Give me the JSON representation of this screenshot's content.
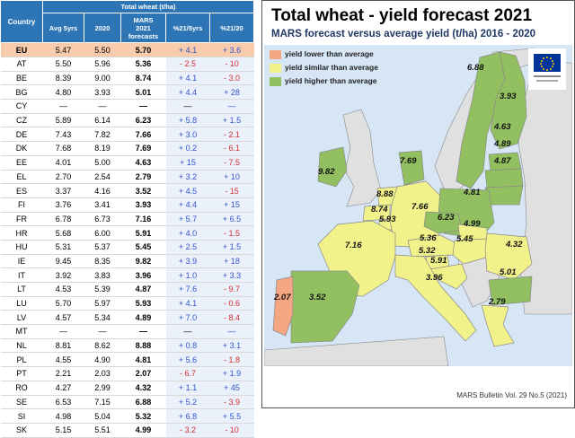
{
  "table": {
    "header_group": "Total wheat (t/ha)",
    "col_country": "Country",
    "col_avg": "Avg 5yrs",
    "col_2020": "2020",
    "col_forecast": [
      "MARS",
      "2021",
      "forecasts"
    ],
    "col_pct5": "%21/5yrs",
    "col_pct20": "%21/20",
    "rows": [
      {
        "c": "EU",
        "a": "5.47",
        "b": "5.50",
        "f": "5.70",
        "p1": "+ 4.1",
        "p2": "+ 3.6"
      },
      {
        "c": "AT",
        "a": "5.50",
        "b": "5.96",
        "f": "5.36",
        "p1": "- 2.5",
        "p2": "- 10"
      },
      {
        "c": "BE",
        "a": "8.39",
        "b": "9.00",
        "f": "8.74",
        "p1": "+ 4.1",
        "p2": "- 3.0"
      },
      {
        "c": "BG",
        "a": "4.80",
        "b": "3.93",
        "f": "5.01",
        "p1": "+ 4.4",
        "p2": "+ 28"
      },
      {
        "c": "CY",
        "a": "—",
        "b": "—",
        "f": "—",
        "p1": "—",
        "p2": "—"
      },
      {
        "c": "CZ",
        "a": "5.89",
        "b": "6.14",
        "f": "6.23",
        "p1": "+ 5.8",
        "p2": "+ 1.5"
      },
      {
        "c": "DE",
        "a": "7.43",
        "b": "7.82",
        "f": "7.66",
        "p1": "+ 3.0",
        "p2": "- 2.1"
      },
      {
        "c": "DK",
        "a": "7.68",
        "b": "8.19",
        "f": "7.69",
        "p1": "+ 0.2",
        "p2": "- 6.1"
      },
      {
        "c": "EE",
        "a": "4.01",
        "b": "5.00",
        "f": "4.63",
        "p1": "+ 15",
        "p2": "- 7.5"
      },
      {
        "c": "EL",
        "a": "2.70",
        "b": "2.54",
        "f": "2.79",
        "p1": "+ 3.2",
        "p2": "+ 10"
      },
      {
        "c": "ES",
        "a": "3.37",
        "b": "4.16",
        "f": "3.52",
        "p1": "+ 4.5",
        "p2": "- 15"
      },
      {
        "c": "FI",
        "a": "3.76",
        "b": "3.41",
        "f": "3.93",
        "p1": "+ 4.4",
        "p2": "+ 15"
      },
      {
        "c": "FR",
        "a": "6.78",
        "b": "6.73",
        "f": "7.16",
        "p1": "+ 5.7",
        "p2": "+ 6.5"
      },
      {
        "c": "HR",
        "a": "5.68",
        "b": "6.00",
        "f": "5.91",
        "p1": "+ 4.0",
        "p2": "- 1.5"
      },
      {
        "c": "HU",
        "a": "5.31",
        "b": "5.37",
        "f": "5.45",
        "p1": "+ 2.5",
        "p2": "+ 1.5"
      },
      {
        "c": "IE",
        "a": "9.45",
        "b": "8.35",
        "f": "9.82",
        "p1": "+ 3.9",
        "p2": "+ 18"
      },
      {
        "c": "IT",
        "a": "3.92",
        "b": "3.83",
        "f": "3.96",
        "p1": "+ 1.0",
        "p2": "+ 3.3"
      },
      {
        "c": "LT",
        "a": "4.53",
        "b": "5.39",
        "f": "4.87",
        "p1": "+ 7.6",
        "p2": "- 9.7"
      },
      {
        "c": "LU",
        "a": "5.70",
        "b": "5.97",
        "f": "5.93",
        "p1": "+ 4.1",
        "p2": "- 0.6"
      },
      {
        "c": "LV",
        "a": "4.57",
        "b": "5.34",
        "f": "4.89",
        "p1": "+ 7.0",
        "p2": "- 8.4"
      },
      {
        "c": "MT",
        "a": "—",
        "b": "—",
        "f": "—",
        "p1": "—",
        "p2": "—"
      },
      {
        "c": "NL",
        "a": "8.81",
        "b": "8.62",
        "f": "8.88",
        "p1": "+ 0.8",
        "p2": "+ 3.1"
      },
      {
        "c": "PL",
        "a": "4.55",
        "b": "4.90",
        "f": "4.81",
        "p1": "+ 5.6",
        "p2": "- 1.8"
      },
      {
        "c": "PT",
        "a": "2.21",
        "b": "2.03",
        "f": "2.07",
        "p1": "- 6.7",
        "p2": "+ 1.9"
      },
      {
        "c": "RO",
        "a": "4.27",
        "b": "2.99",
        "f": "4.32",
        "p1": "+ 1.1",
        "p2": "+ 45"
      },
      {
        "c": "SE",
        "a": "6.53",
        "b": "7.15",
        "f": "6.88",
        "p1": "+ 5.2",
        "p2": "- 3.9"
      },
      {
        "c": "SI",
        "a": "4.98",
        "b": "5.04",
        "f": "5.32",
        "p1": "+ 6.8",
        "p2": "+ 5.5"
      },
      {
        "c": "SK",
        "a": "5.15",
        "b": "5.51",
        "f": "4.99",
        "p1": "- 3.2",
        "p2": "- 10"
      }
    ]
  },
  "map": {
    "title": "Total wheat - yield forecast 2021",
    "subtitle": "MARS forecast versus average yield (t/ha) 2016 - 2020",
    "legend": [
      {
        "label": "yield lower than average",
        "color": "#f4a582"
      },
      {
        "label": "yield similar than average",
        "color": "#f2f28a"
      },
      {
        "label": "yield higher than average",
        "color": "#92c060"
      }
    ],
    "footer": "MARS Bulletin Vol. 29 No.5 (2021)",
    "colors": {
      "sea": "#d6e6f5",
      "nonEU": "#e0e0e0",
      "higher": "#92c060",
      "similar": "#f2f28a",
      "lower": "#f4a582",
      "border": "#8a8a8a"
    },
    "values": [
      {
        "code": "SE",
        "v": "6.88"
      },
      {
        "code": "FI",
        "v": "3.93"
      },
      {
        "code": "EE",
        "v": "4.63"
      },
      {
        "code": "LV",
        "v": "4.89"
      },
      {
        "code": "LT",
        "v": "4.87"
      },
      {
        "code": "IE",
        "v": "9.82"
      },
      {
        "code": "DK",
        "v": "7.69"
      },
      {
        "code": "NL",
        "v": "8.88"
      },
      {
        "code": "BE",
        "v": "8.74"
      },
      {
        "code": "LU",
        "v": "5.93"
      },
      {
        "code": "DE",
        "v": "7.66"
      },
      {
        "code": "PL",
        "v": "4.81"
      },
      {
        "code": "CZ",
        "v": "6.23"
      },
      {
        "code": "SK",
        "v": "4.99"
      },
      {
        "code": "FR",
        "v": "7.16"
      },
      {
        "code": "AT",
        "v": "5.36"
      },
      {
        "code": "HU",
        "v": "5.45"
      },
      {
        "code": "SI",
        "v": "5.32"
      },
      {
        "code": "HR",
        "v": "5.91"
      },
      {
        "code": "RO",
        "v": "4.32"
      },
      {
        "code": "IT",
        "v": "3.96"
      },
      {
        "code": "BG",
        "v": "5.01"
      },
      {
        "code": "PT",
        "v": "2.07"
      },
      {
        "code": "ES",
        "v": "3.52"
      },
      {
        "code": "EL",
        "v": "2.79"
      }
    ]
  }
}
